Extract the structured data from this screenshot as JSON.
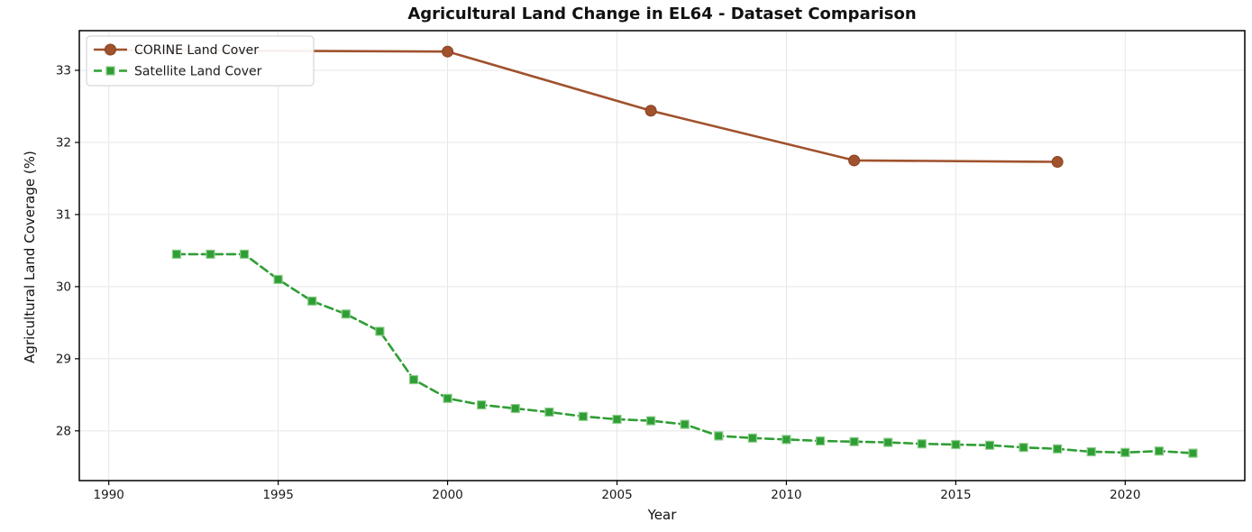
{
  "chart_data": {
    "type": "line",
    "title": "Agricultural Land Change in EL64 - Dataset Comparison",
    "xlabel": "Year",
    "ylabel": "Agricultural Land Coverage (%)",
    "xlim": [
      1989.13,
      2023.53
    ],
    "ylim": [
      27.31,
      33.55
    ],
    "x_ticks": [
      1990,
      1995,
      2000,
      2005,
      2010,
      2015,
      2020
    ],
    "y_ticks": [
      28,
      29,
      30,
      31,
      32,
      33
    ],
    "grid": true,
    "legend_position": "upper-left",
    "series": [
      {
        "name": "CORINE Land Cover",
        "color": "#A0522D",
        "marker_edge": "#864120",
        "line_style": "solid",
        "marker": "circle",
        "x": [
          1990,
          2000,
          2006,
          2012,
          2018
        ],
        "y": [
          33.28,
          33.26,
          32.44,
          31.75,
          31.73
        ]
      },
      {
        "name": "Satellite Land Cover",
        "color": "#2f9e34",
        "marker_edge": "#8fce8f",
        "line_style": "dashed",
        "marker": "square",
        "x": [
          1992,
          1993,
          1994,
          1995,
          1996,
          1997,
          1998,
          1999,
          2000,
          2001,
          2002,
          2003,
          2004,
          2005,
          2006,
          2007,
          2008,
          2009,
          2010,
          2011,
          2012,
          2013,
          2014,
          2015,
          2016,
          2017,
          2018,
          2019,
          2020,
          2021,
          2022
        ],
        "y": [
          30.45,
          30.45,
          30.45,
          30.1,
          29.8,
          29.62,
          29.38,
          28.71,
          28.45,
          28.36,
          28.31,
          28.26,
          28.2,
          28.16,
          28.14,
          28.09,
          27.93,
          27.9,
          27.88,
          27.86,
          27.85,
          27.84,
          27.82,
          27.81,
          27.8,
          27.77,
          27.75,
          27.71,
          27.7,
          27.72,
          27.69
        ]
      }
    ],
    "colors": {
      "grid": "#e7e7e7",
      "spine": "#000000",
      "tick_text": "#1a1a1a",
      "legend_border": "#cccccc",
      "legend_bg": "#ffffff"
    }
  }
}
